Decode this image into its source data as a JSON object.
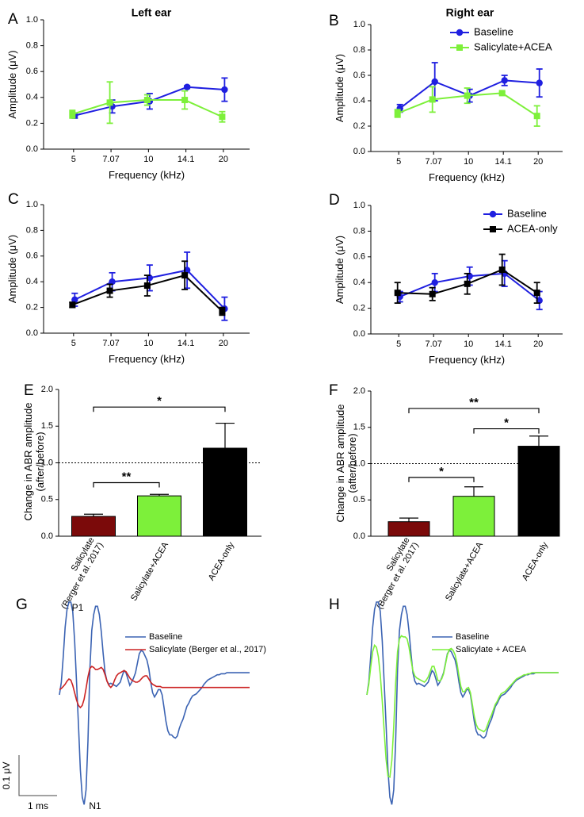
{
  "panel_letters": [
    "A",
    "B",
    "C",
    "D",
    "E",
    "F",
    "G",
    "H"
  ],
  "colors": {
    "baseline": "#1f1fe0",
    "salicylate_acea": "#7df03a",
    "acea_only": "#000000",
    "salicylate_bar": "#7b0a0a",
    "trace_baseline": "#3b63b3",
    "trace_salicylate": "#cc2222",
    "trace_sal_acea": "#7df03a"
  },
  "scale_bar": {
    "vertical_label": "0.1 μV",
    "horizontal_label": "1 ms"
  },
  "chart_data": [
    {
      "id": "A",
      "type": "line",
      "title": "Left ear",
      "xlabel": "Frequency (kHz)",
      "ylabel": "Amplitude  (μV)",
      "categories": [
        "5",
        "7.07",
        "10",
        "14.1",
        "20"
      ],
      "ylim": [
        0,
        1.0
      ],
      "yticks": [
        "0.0",
        "0.2",
        "0.4",
        "0.6",
        "0.8",
        "1.0"
      ],
      "legend_position": "none",
      "series": [
        {
          "name": "Baseline",
          "color_key": "baseline",
          "marker": "circle",
          "values": [
            0.26,
            0.33,
            0.37,
            0.48,
            0.46
          ],
          "err": [
            0.02,
            0.05,
            0.06,
            0.01,
            0.09
          ]
        },
        {
          "name": "Salicylate+ACEA",
          "color_key": "salicylate_acea",
          "marker": "square",
          "values": [
            0.27,
            0.36,
            0.38,
            0.38,
            0.25
          ],
          "err": [
            0.03,
            0.16,
            0.04,
            0.07,
            0.04
          ]
        }
      ]
    },
    {
      "id": "B",
      "type": "line",
      "title": "Right ear",
      "xlabel": "Frequency (kHz)",
      "ylabel": "Amplitude  (μV)",
      "categories": [
        "5",
        "7.07",
        "10",
        "14.1",
        "20"
      ],
      "ylim": [
        0,
        1.0
      ],
      "yticks": [
        "0.0",
        "0.2",
        "0.4",
        "0.6",
        "0.8",
        "1.0"
      ],
      "legend_position": "top-right",
      "series": [
        {
          "name": "Baseline",
          "color_key": "baseline",
          "marker": "circle",
          "values": [
            0.34,
            0.55,
            0.44,
            0.56,
            0.54
          ],
          "err": [
            0.03,
            0.15,
            0.05,
            0.04,
            0.11
          ]
        },
        {
          "name": "Salicylate+ACEA",
          "color_key": "salicylate_acea",
          "marker": "square",
          "values": [
            0.3,
            0.41,
            0.44,
            0.46,
            0.28
          ],
          "err": [
            0.03,
            0.1,
            0.06,
            0.01,
            0.08
          ]
        }
      ]
    },
    {
      "id": "C",
      "type": "line",
      "title": "",
      "xlabel": "Frequency (kHz)",
      "ylabel": "Amplitude  (μV)",
      "categories": [
        "5",
        "7.07",
        "10",
        "14.1",
        "20"
      ],
      "ylim": [
        0,
        1.0
      ],
      "yticks": [
        "0.0",
        "0.2",
        "0.4",
        "0.6",
        "0.8",
        "1.0"
      ],
      "legend_position": "none",
      "series": [
        {
          "name": "Baseline",
          "color_key": "baseline",
          "marker": "circle",
          "values": [
            0.26,
            0.4,
            0.43,
            0.49,
            0.19
          ],
          "err": [
            0.05,
            0.07,
            0.1,
            0.14,
            0.09
          ]
        },
        {
          "name": "ACEA-only",
          "color_key": "acea_only",
          "marker": "square",
          "values": [
            0.22,
            0.33,
            0.37,
            0.45,
            0.17
          ],
          "err": [
            0.02,
            0.05,
            0.08,
            0.11,
            0.03
          ]
        }
      ]
    },
    {
      "id": "D",
      "type": "line",
      "title": "",
      "xlabel": "Frequency (kHz)",
      "ylabel": "Amplitude  (μV)",
      "categories": [
        "5",
        "7.07",
        "10",
        "14.1",
        "20"
      ],
      "ylim": [
        0,
        1.0
      ],
      "yticks": [
        "0.0",
        "0.2",
        "0.4",
        "0.6",
        "0.8",
        "1.0"
      ],
      "legend_position": "top-right",
      "series": [
        {
          "name": "Baseline",
          "color_key": "baseline",
          "marker": "circle",
          "values": [
            0.29,
            0.4,
            0.45,
            0.47,
            0.26
          ],
          "err": [
            0.04,
            0.07,
            0.07,
            0.1,
            0.07
          ]
        },
        {
          "name": "ACEA-only",
          "color_key": "acea_only",
          "marker": "square",
          "values": [
            0.32,
            0.31,
            0.39,
            0.5,
            0.32
          ],
          "err": [
            0.08,
            0.05,
            0.08,
            0.12,
            0.08
          ]
        }
      ]
    },
    {
      "id": "E",
      "type": "bar",
      "title": "",
      "ylabel_lines": [
        "Change in ABR amplitude",
        "(after/before)"
      ],
      "categories": [
        {
          "lines": [
            "Salicylate",
            "(Berger et al. 2017)"
          ],
          "color_key": "salicylate_bar"
        },
        {
          "lines": [
            "Salicylate+ACEA"
          ],
          "color_key": "salicylate_acea"
        },
        {
          "lines": [
            "ACEA-only"
          ],
          "color_key": "acea_only"
        }
      ],
      "values": [
        0.27,
        0.55,
        1.2
      ],
      "err": [
        0.03,
        0.02,
        0.34
      ],
      "ylim": [
        0,
        2.0
      ],
      "yticks": [
        "0.0",
        "0.5",
        "1.0",
        "1.5",
        "2.0"
      ],
      "reference_line": 1.0,
      "significance": [
        {
          "from": 0,
          "to": 1,
          "y": 0.73,
          "label": "**"
        },
        {
          "from": 0,
          "to": 2,
          "y": 1.76,
          "label": "*"
        }
      ]
    },
    {
      "id": "F",
      "type": "bar",
      "title": "",
      "ylabel_lines": [
        "Change in ABR amplitude",
        "(after/before)"
      ],
      "categories": [
        {
          "lines": [
            "Salicylate",
            "(Berger et al. 2017)"
          ],
          "color_key": "salicylate_bar"
        },
        {
          "lines": [
            "Salicylate+ACEA"
          ],
          "color_key": "salicylate_acea"
        },
        {
          "lines": [
            "ACEA-only"
          ],
          "color_key": "acea_only"
        }
      ],
      "values": [
        0.2,
        0.55,
        1.24
      ],
      "err": [
        0.05,
        0.13,
        0.14
      ],
      "ylim": [
        0,
        2.0
      ],
      "yticks": [
        "0.0",
        "0.5",
        "1.0",
        "1.5",
        "2.0"
      ],
      "reference_line": 1.0,
      "significance": [
        {
          "from": 0,
          "to": 1,
          "y": 0.81,
          "label": "*"
        },
        {
          "from": 1,
          "to": 2,
          "y": 1.48,
          "label": "*"
        },
        {
          "from": 0,
          "to": 2,
          "y": 1.76,
          "label": "**"
        }
      ]
    },
    {
      "id": "G",
      "type": "line",
      "subtype": "waveform",
      "peak_labels": [
        "P1",
        "N1"
      ],
      "x": [
        0,
        0.4,
        0.8,
        1.2,
        1.6,
        2,
        2.4,
        2.8,
        3.2,
        3.6,
        4,
        4.4,
        4.8,
        5.2,
        5.6,
        6,
        6.4,
        6.8,
        7.2,
        7.6,
        8,
        8.4,
        8.8,
        9.2,
        9.6,
        10,
        10.4,
        10.8,
        11.2,
        11.6,
        12,
        12.4,
        12.8,
        13.2,
        13.6,
        14,
        14.4,
        14.8,
        15.2,
        15.6,
        16,
        16.4,
        16.8,
        17.2,
        17.6,
        18,
        18.4,
        18.8,
        19.2,
        19.6,
        20,
        20.4,
        20.8,
        21.2,
        21.6,
        22,
        22.4,
        22.8,
        23.2,
        23.6,
        24,
        24.4,
        24.8,
        25.2,
        25.6,
        26,
        26.4,
        26.8,
        27.2,
        27.6,
        28,
        28.4,
        28.8,
        29.2,
        29.6,
        30,
        30.4,
        30.8,
        31.2,
        31.6,
        32,
        32.4,
        32.8,
        33.2,
        33.6,
        34,
        34.4,
        34.8,
        35.2,
        35.6,
        36,
        36.4,
        36.8,
        37.2,
        37.6,
        38,
        38.4,
        38.8,
        39.2,
        39.6,
        40
      ],
      "series": [
        {
          "name": "Baseline",
          "color_key": "trace_baseline",
          "values": [
            0,
            0.12,
            0.36,
            0.64,
            0.81,
            0.88,
            0.88,
            0.79,
            0.51,
            0.12,
            -0.28,
            -0.71,
            -0.97,
            -1.04,
            -0.9,
            -0.44,
            0.24,
            0.61,
            0.76,
            0.84,
            0.84,
            0.76,
            0.6,
            0.39,
            0.21,
            0.13,
            0.1,
            0.11,
            0.1,
            0.09,
            0.08,
            0.1,
            0.12,
            0.18,
            0.23,
            0.21,
            0.15,
            0.09,
            0.12,
            0.16,
            0.21,
            0.3,
            0.39,
            0.42,
            0.41,
            0.37,
            0.33,
            0.25,
            0.12,
            0.02,
            -0.02,
            0.01,
            0.05,
            0.05,
            0,
            -0.12,
            -0.25,
            -0.34,
            -0.38,
            -0.38,
            -0.4,
            -0.41,
            -0.39,
            -0.32,
            -0.27,
            -0.23,
            -0.17,
            -0.11,
            -0.08,
            -0.04,
            -0.01,
            0,
            0.01,
            0.03,
            0.05,
            0.07,
            0.1,
            0.12,
            0.14,
            0.15,
            0.16,
            0.17,
            0.18,
            0.19,
            0.19,
            0.2,
            0.2,
            0.2,
            0.21,
            0.21,
            0.21,
            0.21,
            0.21,
            0.21,
            0.21,
            0.21,
            0.21,
            0.21,
            0.21,
            0.21,
            0.21
          ]
        },
        {
          "name": "Salicylate (Berger et al., 2017)",
          "color_key": "trace_salicylate",
          "values": [
            0.05,
            0.06,
            0.08,
            0.1,
            0.13,
            0.15,
            0.14,
            0.09,
            0.02,
            -0.05,
            -0.1,
            -0.12,
            -0.1,
            -0.04,
            0.06,
            0.17,
            0.25,
            0.27,
            0.26,
            0.24,
            0.24,
            0.25,
            0.26,
            0.24,
            0.19,
            0.13,
            0.09,
            0.07,
            0.09,
            0.14,
            0.18,
            0.2,
            0.21,
            0.22,
            0.23,
            0.22,
            0.19,
            0.16,
            0.14,
            0.13,
            0.12,
            0.12,
            0.13,
            0.15,
            0.17,
            0.18,
            0.18,
            0.15,
            0.12,
            0.1,
            0.09,
            0.08,
            0.08,
            0.08,
            0.07,
            0.07,
            0.07,
            0.07,
            0.07,
            0.07,
            0.07,
            0.07,
            0.07,
            0.07,
            0.07,
            0.07,
            0.07,
            0.07,
            0.07,
            0.07,
            0.07,
            0.07,
            0.07,
            0.07,
            0.07,
            0.07,
            0.07,
            0.07,
            0.07,
            0.07,
            0.07,
            0.07,
            0.07,
            0.07,
            0.07,
            0.07,
            0.07,
            0.07,
            0.07,
            0.07,
            0.07,
            0.07,
            0.07,
            0.07,
            0.07,
            0.07,
            0.07,
            0.07,
            0.07,
            0.07,
            0.07
          ]
        }
      ],
      "legend_position": "top-right"
    },
    {
      "id": "H",
      "type": "line",
      "subtype": "waveform",
      "x": [
        0,
        0.4,
        0.8,
        1.2,
        1.6,
        2,
        2.4,
        2.8,
        3.2,
        3.6,
        4,
        4.4,
        4.8,
        5.2,
        5.6,
        6,
        6.4,
        6.8,
        7.2,
        7.6,
        8,
        8.4,
        8.8,
        9.2,
        9.6,
        10,
        10.4,
        10.8,
        11.2,
        11.6,
        12,
        12.4,
        12.8,
        13.2,
        13.6,
        14,
        14.4,
        14.8,
        15.2,
        15.6,
        16,
        16.4,
        16.8,
        17.2,
        17.6,
        18,
        18.4,
        18.8,
        19.2,
        19.6,
        20,
        20.4,
        20.8,
        21.2,
        21.6,
        22,
        22.4,
        22.8,
        23.2,
        23.6,
        24,
        24.4,
        24.8,
        25.2,
        25.6,
        26,
        26.4,
        26.8,
        27.2,
        27.6,
        28,
        28.4,
        28.8,
        29.2,
        29.6,
        30,
        30.4,
        30.8,
        31.2,
        31.6,
        32,
        32.4,
        32.8,
        33.2,
        33.6,
        34,
        34.4,
        34.8,
        35.2,
        35.6,
        36,
        36.4,
        36.8,
        37.2,
        37.6,
        38,
        38.4,
        38.8,
        39.2,
        39.6,
        40
      ],
      "series": [
        {
          "name": "Baseline",
          "color_key": "trace_baseline",
          "values": [
            0,
            0.12,
            0.36,
            0.64,
            0.81,
            0.88,
            0.88,
            0.79,
            0.51,
            0.12,
            -0.28,
            -0.71,
            -0.97,
            -1.04,
            -0.9,
            -0.44,
            0.24,
            0.61,
            0.76,
            0.84,
            0.84,
            0.76,
            0.6,
            0.39,
            0.21,
            0.13,
            0.1,
            0.11,
            0.1,
            0.09,
            0.08,
            0.1,
            0.12,
            0.18,
            0.23,
            0.21,
            0.15,
            0.09,
            0.12,
            0.16,
            0.21,
            0.3,
            0.39,
            0.42,
            0.41,
            0.37,
            0.33,
            0.25,
            0.12,
            0.02,
            -0.02,
            0.01,
            0.05,
            0.05,
            0,
            -0.12,
            -0.25,
            -0.34,
            -0.38,
            -0.38,
            -0.4,
            -0.41,
            -0.39,
            -0.32,
            -0.27,
            -0.23,
            -0.17,
            -0.11,
            -0.08,
            -0.04,
            -0.01,
            0,
            0.01,
            0.03,
            0.05,
            0.07,
            0.1,
            0.12,
            0.14,
            0.15,
            0.16,
            0.17,
            0.18,
            0.19,
            0.19,
            0.2,
            0.2,
            0.2,
            0.21,
            0.21,
            0.21,
            0.21,
            0.21,
            0.21,
            0.21,
            0.21,
            0.21,
            0.21,
            0.21,
            0.21,
            0.21
          ]
        },
        {
          "name": "Salicylate + ACEA",
          "color_key": "trace_sal_acea",
          "values": [
            0,
            0.1,
            0.26,
            0.41,
            0.47,
            0.45,
            0.36,
            0.19,
            -0.06,
            -0.34,
            -0.61,
            -0.77,
            -0.78,
            -0.62,
            -0.3,
            0.11,
            0.41,
            0.53,
            0.56,
            0.55,
            0.55,
            0.53,
            0.45,
            0.33,
            0.23,
            0.18,
            0.16,
            0.15,
            0.14,
            0.13,
            0.12,
            0.14,
            0.17,
            0.22,
            0.27,
            0.27,
            0.21,
            0.14,
            0.13,
            0.15,
            0.2,
            0.29,
            0.38,
            0.43,
            0.44,
            0.42,
            0.38,
            0.3,
            0.18,
            0.08,
            0.03,
            0.03,
            0.06,
            0.07,
            0.02,
            -0.09,
            -0.2,
            -0.28,
            -0.32,
            -0.33,
            -0.34,
            -0.35,
            -0.33,
            -0.28,
            -0.23,
            -0.19,
            -0.14,
            -0.09,
            -0.06,
            -0.02,
            0.01,
            0.02,
            0.03,
            0.05,
            0.07,
            0.09,
            0.11,
            0.13,
            0.15,
            0.16,
            0.17,
            0.18,
            0.19,
            0.19,
            0.2,
            0.2,
            0.21,
            0.21,
            0.21,
            0.21,
            0.21,
            0.21,
            0.21,
            0.21,
            0.21,
            0.21,
            0.21,
            0.21,
            0.21,
            0.21,
            0.21
          ]
        }
      ],
      "legend_position": "top-right"
    }
  ]
}
